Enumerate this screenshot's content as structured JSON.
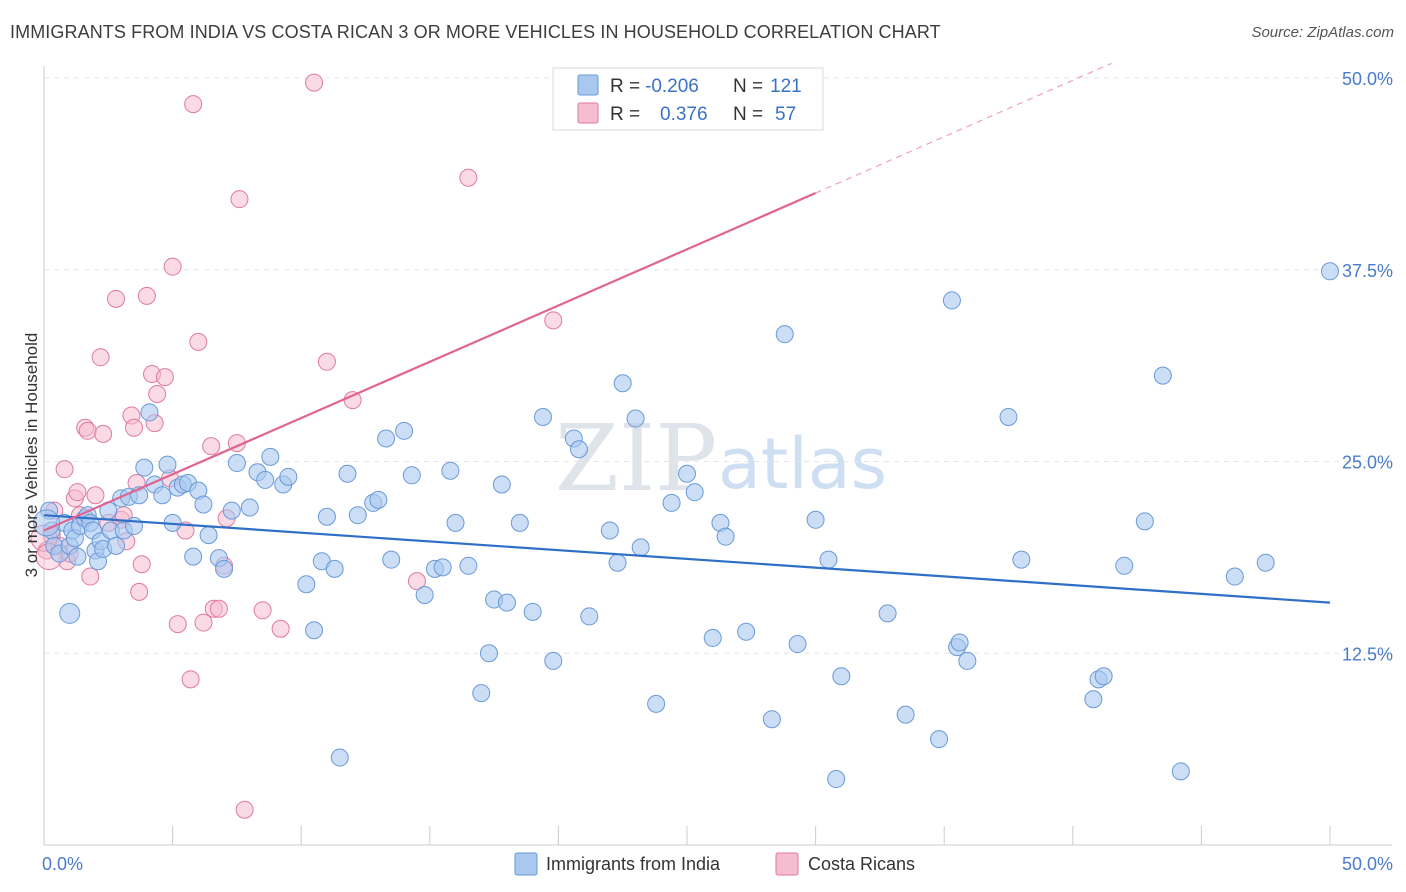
{
  "title": "IMMIGRANTS FROM INDIA VS COSTA RICAN 3 OR MORE VEHICLES IN HOUSEHOLD CORRELATION CHART",
  "source": "Source: ZipAtlas.com",
  "watermark": {
    "zip": "ZIP",
    "atlas": "atlas"
  },
  "legend": {
    "r_label": "R =",
    "n_label": "N =",
    "rows": [
      {
        "r": "-0.206",
        "n": "121"
      },
      {
        "r": "0.376",
        "n": "57"
      }
    ]
  },
  "colors": {
    "india": "#a9c8f0",
    "india_stroke": "#6a9ad8",
    "india_line": "#2f6fc7",
    "costa": "#f6bcd0",
    "costa_stroke": "#e07aa0",
    "costa_line": "#e0648f",
    "grid": "#e6e6e6",
    "tick_text": "#4a7cc9"
  },
  "chart_data": {
    "type": "scatter",
    "title": "IMMIGRANTS FROM INDIA VS COSTA RICAN 3 OR MORE VEHICLES IN HOUSEHOLD CORRELATION CHART",
    "xlabel": "",
    "ylabel": "3 or more Vehicles in Household",
    "xlim": [
      0,
      50
    ],
    "ylim": [
      0,
      50
    ],
    "x_tick_labels": [
      "0.0%",
      "50.0%"
    ],
    "y_ticks": [
      12.5,
      25,
      37.5,
      50
    ],
    "y_tick_labels": [
      "12.5%",
      "25.0%",
      "37.5%",
      "50.0%"
    ],
    "grid": true,
    "legend_position": "bottom",
    "series": [
      {
        "name": "Immigrants from India",
        "r": -0.206,
        "n": 121,
        "trend": {
          "x0": 0,
          "y0": 21.5,
          "x1": 50,
          "y1": 15.8
        },
        "points": [
          [
            0.2,
            21.8
          ],
          [
            0.3,
            20.5
          ],
          [
            0.4,
            19.5
          ],
          [
            0.6,
            19.0
          ],
          [
            0.8,
            21.0
          ],
          [
            1.0,
            19.5
          ],
          [
            1.1,
            20.5
          ],
          [
            1.2,
            20.0
          ],
          [
            1.3,
            18.8
          ],
          [
            1.4,
            20.8
          ],
          [
            1.6,
            21.3
          ],
          [
            1.7,
            21.5
          ],
          [
            1.8,
            21.0
          ],
          [
            1.9,
            20.5
          ],
          [
            2.0,
            19.2
          ],
          [
            2.1,
            18.5
          ],
          [
            2.2,
            19.8
          ],
          [
            2.3,
            19.3
          ],
          [
            2.5,
            21.8
          ],
          [
            2.6,
            20.5
          ],
          [
            2.8,
            19.5
          ],
          [
            3.0,
            22.6
          ],
          [
            3.1,
            20.5
          ],
          [
            3.3,
            22.7
          ],
          [
            3.5,
            20.8
          ],
          [
            3.7,
            22.8
          ],
          [
            3.9,
            24.6
          ],
          [
            4.1,
            28.2
          ],
          [
            4.3,
            23.5
          ],
          [
            4.6,
            22.8
          ],
          [
            4.8,
            24.8
          ],
          [
            5.0,
            21.0
          ],
          [
            5.2,
            23.3
          ],
          [
            5.4,
            23.5
          ],
          [
            5.6,
            23.6
          ],
          [
            5.8,
            18.8
          ],
          [
            6.0,
            23.1
          ],
          [
            6.2,
            22.2
          ],
          [
            6.4,
            20.2
          ],
          [
            6.8,
            18.7
          ],
          [
            7.0,
            18.0
          ],
          [
            7.3,
            21.8
          ],
          [
            7.5,
            24.9
          ],
          [
            8.0,
            22.0
          ],
          [
            8.3,
            24.3
          ],
          [
            8.6,
            23.8
          ],
          [
            8.8,
            25.3
          ],
          [
            9.3,
            23.5
          ],
          [
            9.5,
            24.0
          ],
          [
            10.2,
            17.0
          ],
          [
            10.5,
            14.0
          ],
          [
            10.8,
            18.5
          ],
          [
            11.0,
            21.4
          ],
          [
            11.3,
            18.0
          ],
          [
            11.5,
            5.7
          ],
          [
            11.8,
            24.2
          ],
          [
            12.2,
            21.5
          ],
          [
            12.8,
            22.3
          ],
          [
            13.0,
            22.5
          ],
          [
            13.3,
            26.5
          ],
          [
            13.5,
            18.6
          ],
          [
            14.0,
            27.0
          ],
          [
            14.3,
            24.1
          ],
          [
            14.8,
            16.3
          ],
          [
            15.2,
            18.0
          ],
          [
            15.5,
            18.1
          ],
          [
            15.8,
            24.4
          ],
          [
            16.0,
            21.0
          ],
          [
            16.5,
            18.2
          ],
          [
            17.0,
            9.9
          ],
          [
            17.3,
            12.5
          ],
          [
            17.5,
            16.0
          ],
          [
            17.8,
            23.5
          ],
          [
            18.0,
            15.8
          ],
          [
            18.5,
            21.0
          ],
          [
            19.0,
            15.2
          ],
          [
            19.4,
            27.9
          ],
          [
            19.8,
            12.0
          ],
          [
            20.6,
            26.5
          ],
          [
            20.8,
            25.8
          ],
          [
            21.2,
            14.9
          ],
          [
            22.0,
            20.5
          ],
          [
            22.3,
            18.4
          ],
          [
            22.5,
            30.1
          ],
          [
            23.0,
            27.8
          ],
          [
            23.2,
            19.4
          ],
          [
            23.8,
            9.2
          ],
          [
            24.4,
            22.3
          ],
          [
            25.0,
            24.2
          ],
          [
            25.3,
            23.0
          ],
          [
            26.0,
            13.5
          ],
          [
            26.3,
            21.0
          ],
          [
            26.5,
            20.1
          ],
          [
            27.3,
            13.9
          ],
          [
            28.3,
            8.2
          ],
          [
            28.8,
            33.3
          ],
          [
            29.3,
            13.1
          ],
          [
            30.0,
            21.2
          ],
          [
            30.5,
            18.6
          ],
          [
            30.8,
            4.3
          ],
          [
            31.0,
            11.0
          ],
          [
            32.8,
            15.1
          ],
          [
            33.5,
            8.5
          ],
          [
            34.8,
            6.9
          ],
          [
            35.3,
            35.5
          ],
          [
            35.5,
            12.9
          ],
          [
            35.6,
            13.2
          ],
          [
            35.9,
            12.0
          ],
          [
            37.5,
            27.9
          ],
          [
            38.0,
            18.6
          ],
          [
            40.8,
            9.5
          ],
          [
            41.0,
            10.8
          ],
          [
            41.2,
            11.0
          ],
          [
            42.0,
            18.2
          ],
          [
            42.8,
            21.1
          ],
          [
            43.5,
            30.6
          ],
          [
            44.2,
            4.8
          ],
          [
            46.3,
            17.5
          ],
          [
            47.5,
            18.4
          ],
          [
            50.0,
            37.4
          ]
        ]
      },
      {
        "name": "Costa Ricans",
        "r": 0.376,
        "n": 57,
        "trend": {
          "x0": 0,
          "y0": 20.5,
          "x1": 30,
          "y1": 42.5,
          "dash_x1": 50,
          "dash_y1": 57.2
        },
        "points": [
          [
            0.1,
            19.2
          ],
          [
            0.3,
            20.2
          ],
          [
            0.4,
            21.8
          ],
          [
            0.6,
            19.5
          ],
          [
            0.8,
            24.5
          ],
          [
            0.9,
            18.5
          ],
          [
            1.0,
            19.0
          ],
          [
            1.2,
            22.6
          ],
          [
            1.3,
            23.0
          ],
          [
            1.4,
            21.5
          ],
          [
            1.6,
            27.2
          ],
          [
            1.7,
            27.0
          ],
          [
            1.8,
            17.5
          ],
          [
            2.0,
            22.8
          ],
          [
            2.2,
            31.8
          ],
          [
            2.3,
            26.8
          ],
          [
            2.5,
            21.0
          ],
          [
            2.8,
            35.6
          ],
          [
            3.0,
            21.2
          ],
          [
            3.1,
            21.5
          ],
          [
            3.2,
            19.8
          ],
          [
            3.4,
            28.0
          ],
          [
            3.5,
            27.2
          ],
          [
            3.6,
            23.6
          ],
          [
            3.7,
            16.5
          ],
          [
            3.8,
            18.3
          ],
          [
            4.0,
            35.8
          ],
          [
            4.2,
            30.7
          ],
          [
            4.3,
            27.5
          ],
          [
            4.4,
            29.4
          ],
          [
            4.7,
            30.5
          ],
          [
            4.9,
            23.9
          ],
          [
            5.0,
            37.7
          ],
          [
            5.2,
            14.4
          ],
          [
            5.5,
            20.5
          ],
          [
            5.7,
            10.8
          ],
          [
            5.8,
            48.3
          ],
          [
            6.0,
            32.8
          ],
          [
            6.2,
            14.5
          ],
          [
            6.5,
            26.0
          ],
          [
            6.6,
            15.4
          ],
          [
            6.8,
            15.4
          ],
          [
            7.0,
            18.2
          ],
          [
            7.1,
            21.3
          ],
          [
            7.5,
            26.2
          ],
          [
            7.6,
            42.1
          ],
          [
            7.8,
            2.3
          ],
          [
            8.5,
            15.3
          ],
          [
            9.2,
            14.1
          ],
          [
            10.5,
            49.7
          ],
          [
            11.0,
            31.5
          ],
          [
            12.0,
            29.0
          ],
          [
            14.5,
            17.2
          ],
          [
            16.5,
            43.5
          ],
          [
            19.8,
            34.2
          ],
          [
            0.0,
            20.0
          ],
          [
            0.2,
            18.8
          ]
        ]
      }
    ]
  },
  "bottom_legend": [
    "Immigrants from India",
    "Costa Ricans"
  ]
}
